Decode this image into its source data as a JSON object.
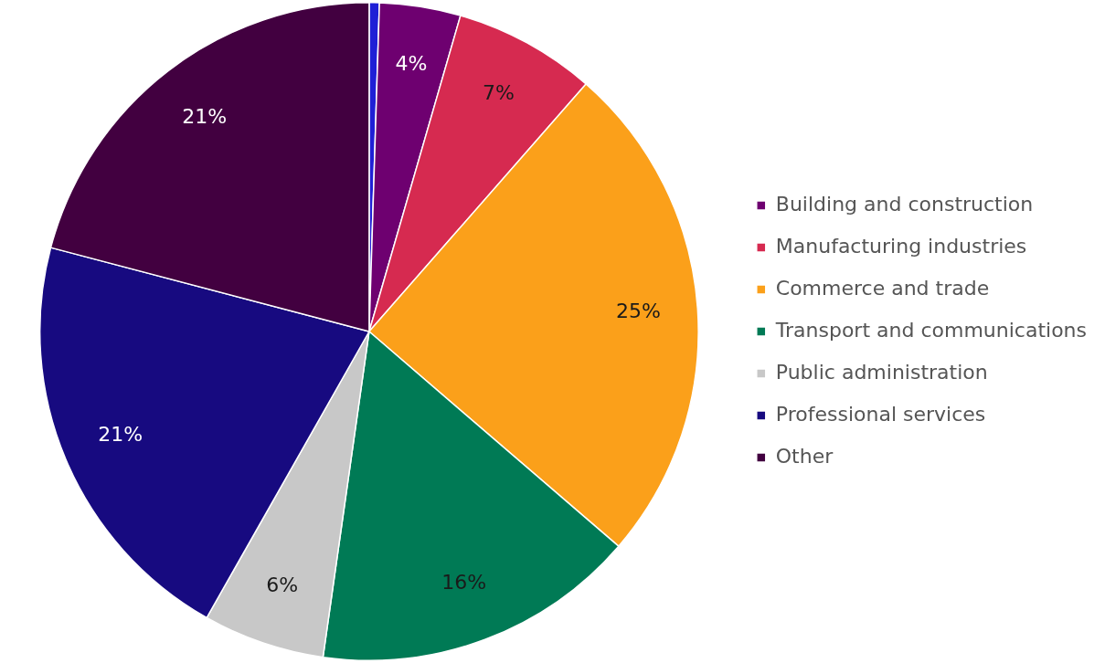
{
  "chart_data": {
    "type": "pie",
    "categories": [
      null,
      "Building and construction",
      "Manufacturing industries",
      "Commerce and trade",
      "Transport and communications",
      "Public administration",
      "Professional services",
      "Other"
    ],
    "values": [
      0.5,
      4,
      7,
      25,
      16,
      6,
      21,
      21
    ],
    "colors": [
      "#1f1fd6",
      "#6e0070",
      "#d62a50",
      "#fba01a",
      "#007a55",
      "#c8c8c8",
      "#170a80",
      "#420040"
    ],
    "value_labels": [
      null,
      "4%",
      "7%",
      "25%",
      "16%",
      "6%",
      "21%",
      "21%"
    ],
    "legend": "right"
  }
}
